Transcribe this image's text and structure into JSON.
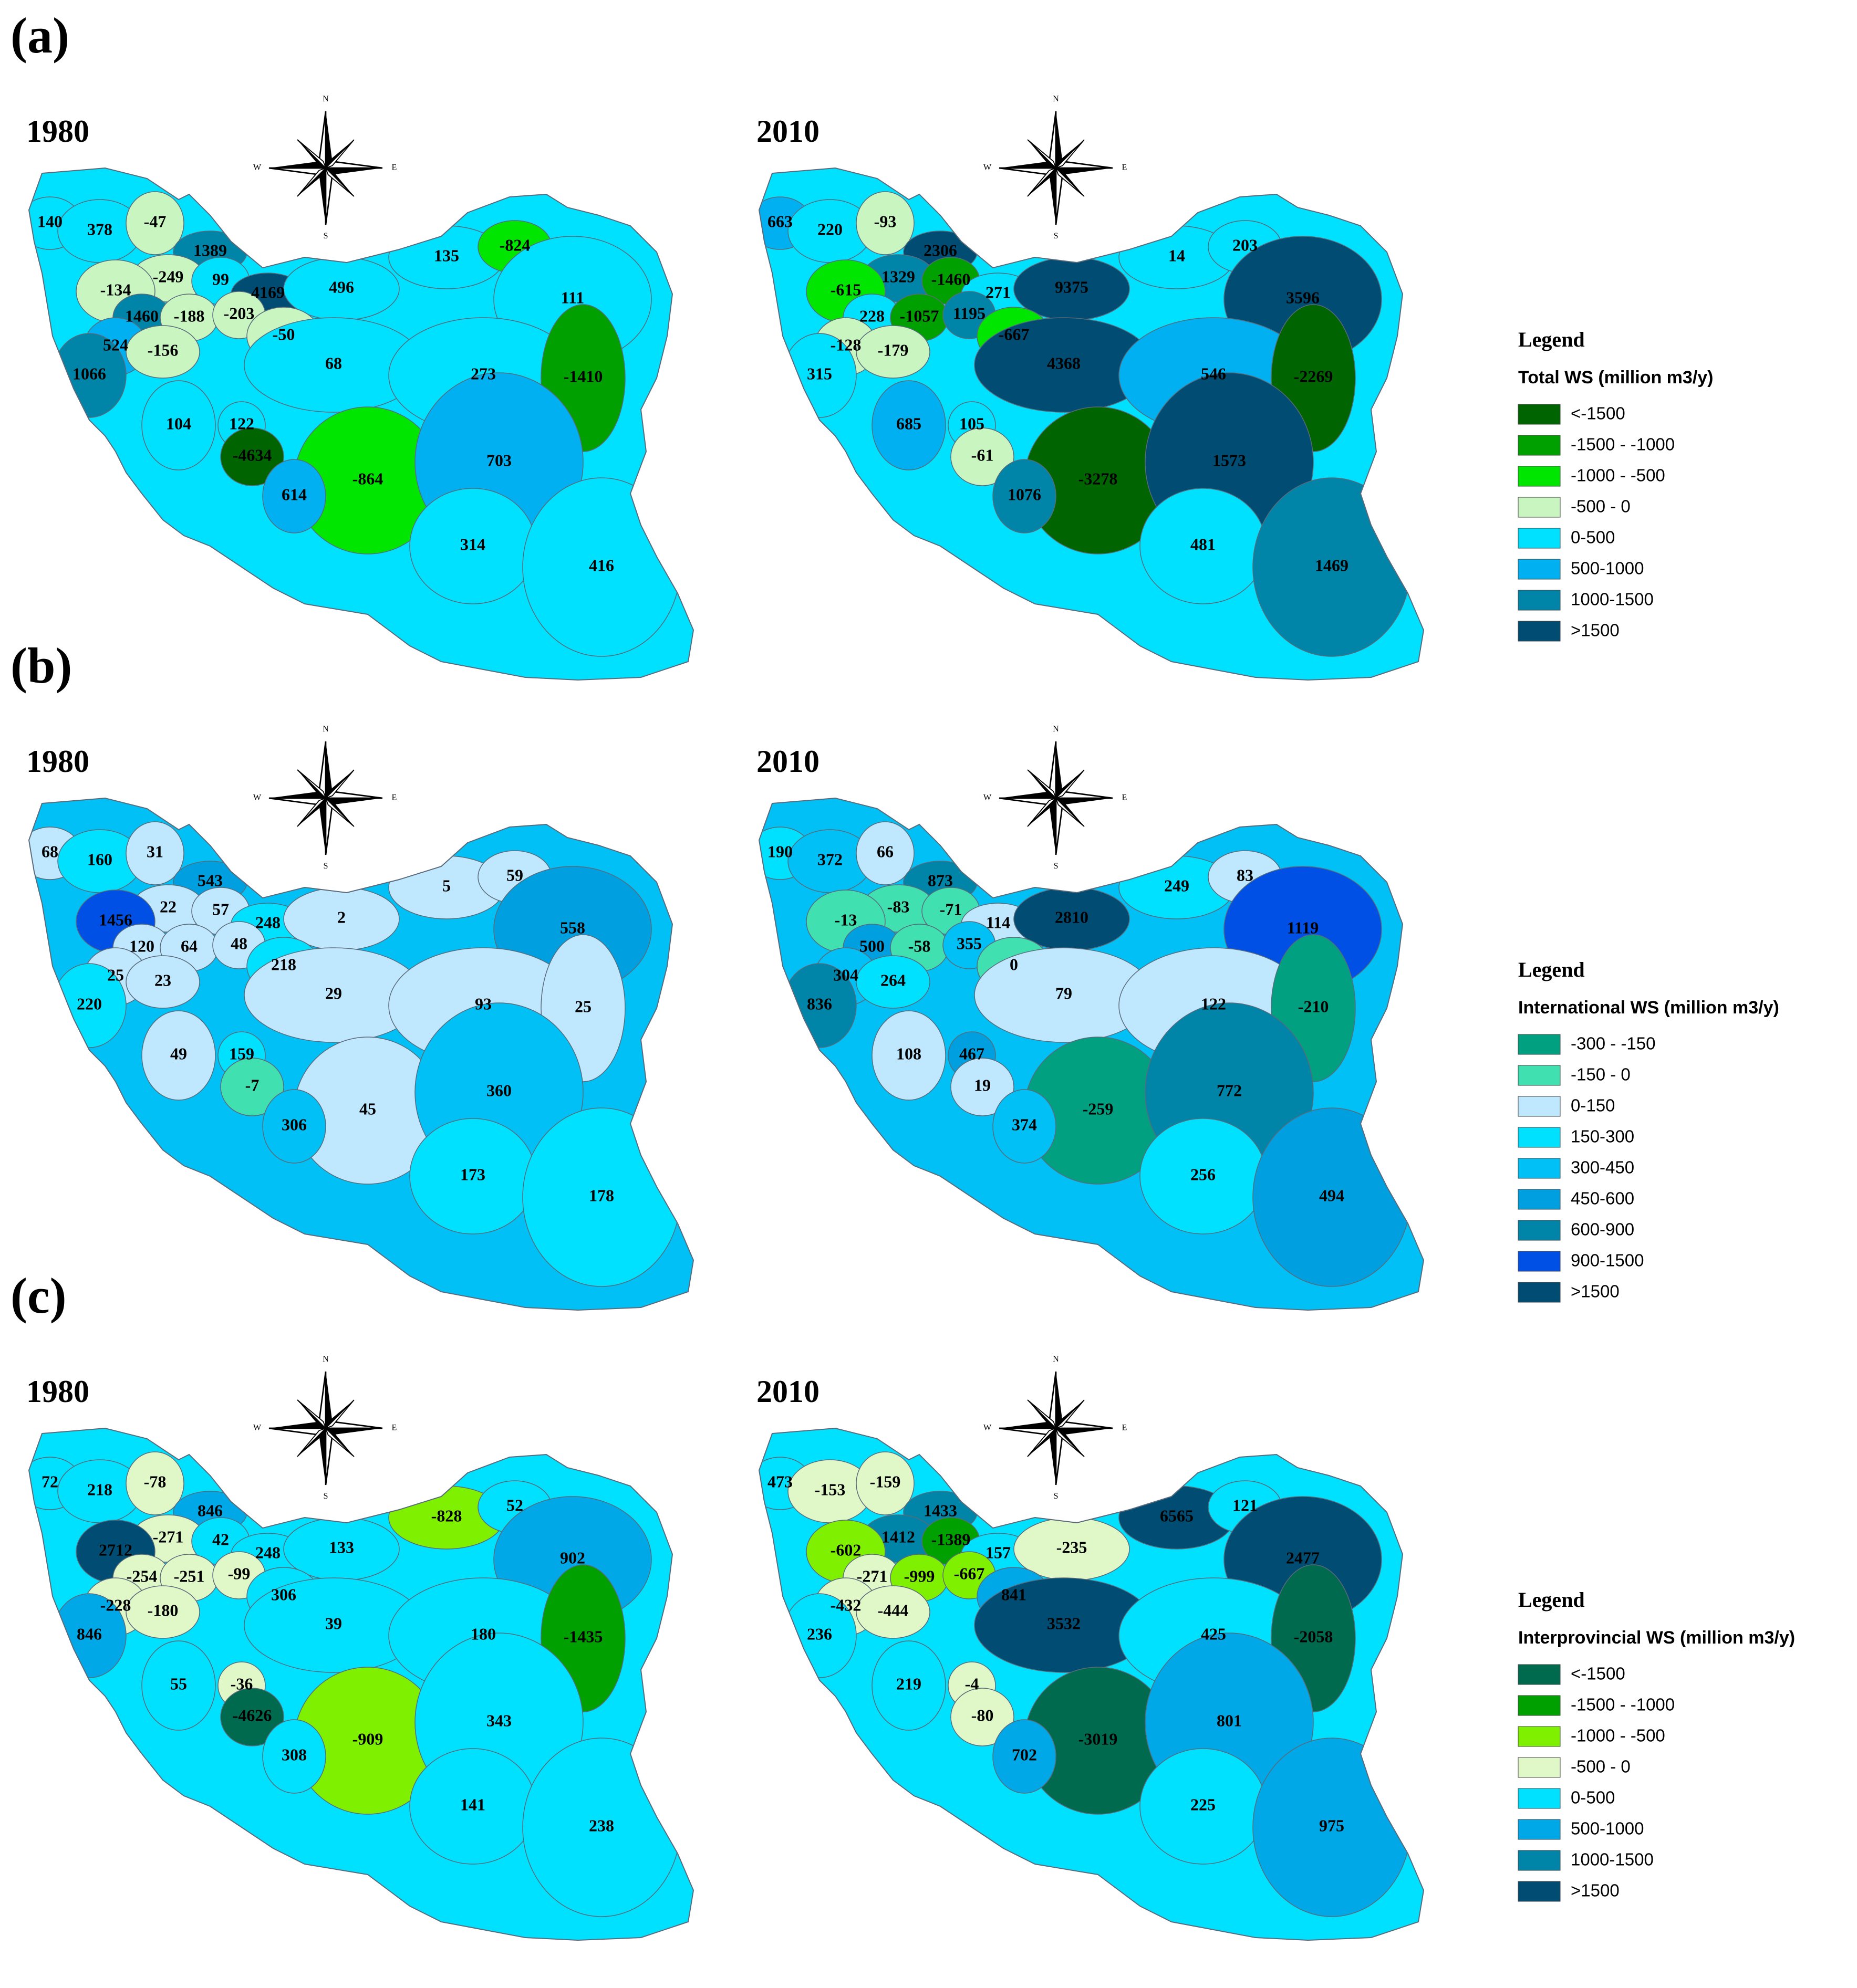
{
  "panels": [
    {
      "letter": "(a)",
      "legend": {
        "heading": "Legend",
        "title": "Total WS (million m3/y)",
        "classes": [
          {
            "label": "<-1500",
            "color": "#006400"
          },
          {
            "label": "-1500 - -1000",
            "color": "#00a000"
          },
          {
            "label": "-1000 - -500",
            "color": "#00e600"
          },
          {
            "label": "-500 - 0",
            "color": "#c8f5c0"
          },
          {
            "label": "0-500",
            "color": "#00e0ff"
          },
          {
            "label": "500-1000",
            "color": "#00b0f0"
          },
          {
            "label": "1000-1500",
            "color": "#0084a8"
          },
          {
            "label": ">1500",
            "color": "#004c73"
          }
        ]
      },
      "maps": [
        {
          "year": "1980",
          "regions": [
            {
              "label": "140",
              "cls": 4
            },
            {
              "label": "378",
              "cls": 4
            },
            {
              "label": "-47",
              "cls": 3
            },
            {
              "label": "1389",
              "cls": 6
            },
            {
              "label": "-249",
              "cls": 3
            },
            {
              "label": "99",
              "cls": 4
            },
            {
              "label": "-134",
              "cls": 3
            },
            {
              "label": "4169",
              "cls": 7
            },
            {
              "label": "496",
              "cls": 4
            },
            {
              "label": "135",
              "cls": 4
            },
            {
              "label": "-824",
              "cls": 2
            },
            {
              "label": "111",
              "cls": 4
            },
            {
              "label": "1460",
              "cls": 6
            },
            {
              "label": "-188",
              "cls": 3
            },
            {
              "label": "-203",
              "cls": 3
            },
            {
              "label": "-50",
              "cls": 3
            },
            {
              "label": "524",
              "cls": 5
            },
            {
              "label": "-156",
              "cls": 3
            },
            {
              "label": "68",
              "cls": 4
            },
            {
              "label": "1066",
              "cls": 6
            },
            {
              "label": "273",
              "cls": 4
            },
            {
              "label": "-1410",
              "cls": 1
            },
            {
              "label": "122",
              "cls": 4
            },
            {
              "label": "104",
              "cls": 4
            },
            {
              "label": "-4634",
              "cls": 0
            },
            {
              "label": "-864",
              "cls": 2
            },
            {
              "label": "703",
              "cls": 5
            },
            {
              "label": "614",
              "cls": 5
            },
            {
              "label": "314",
              "cls": 4
            },
            {
              "label": "416",
              "cls": 4
            }
          ]
        },
        {
          "year": "2010",
          "regions": [
            {
              "label": "663",
              "cls": 5
            },
            {
              "label": "220",
              "cls": 4
            },
            {
              "label": "-93",
              "cls": 3
            },
            {
              "label": "2306",
              "cls": 7
            },
            {
              "label": "1329",
              "cls": 6
            },
            {
              "label": "-1460",
              "cls": 1
            },
            {
              "label": "-615",
              "cls": 2
            },
            {
              "label": "271",
              "cls": 4
            },
            {
              "label": "9375",
              "cls": 7
            },
            {
              "label": "14",
              "cls": 4
            },
            {
              "label": "203",
              "cls": 4
            },
            {
              "label": "3596",
              "cls": 7
            },
            {
              "label": "228",
              "cls": 4
            },
            {
              "label": "-1057",
              "cls": 1
            },
            {
              "label": "1195",
              "cls": 6
            },
            {
              "label": "-667",
              "cls": 2
            },
            {
              "label": "-128",
              "cls": 3
            },
            {
              "label": "-179",
              "cls": 3
            },
            {
              "label": "4368",
              "cls": 7
            },
            {
              "label": "315",
              "cls": 4
            },
            {
              "label": "546",
              "cls": 5
            },
            {
              "label": "-2269",
              "cls": 0
            },
            {
              "label": "105",
              "cls": 4
            },
            {
              "label": "685",
              "cls": 5
            },
            {
              "label": "-61",
              "cls": 3
            },
            {
              "label": "-3278",
              "cls": 0
            },
            {
              "label": "1573",
              "cls": 7
            },
            {
              "label": "1076",
              "cls": 6
            },
            {
              "label": "481",
              "cls": 4
            },
            {
              "label": "1469",
              "cls": 6
            }
          ]
        }
      ]
    },
    {
      "letter": "(b)",
      "legend": {
        "heading": "Legend",
        "title": "International WS (million m3/y)",
        "classes": [
          {
            "label": "-300 - -150",
            "color": "#00a080"
          },
          {
            "label": "-150 - 0",
            "color": "#40e0b0"
          },
          {
            "label": "0-150",
            "color": "#bfe8ff"
          },
          {
            "label": "150-300",
            "color": "#00e0ff"
          },
          {
            "label": "300-450",
            "color": "#00c0f5"
          },
          {
            "label": "450-600",
            "color": "#00a0e0"
          },
          {
            "label": "600-900",
            "color": "#0084a8"
          },
          {
            "label": "900-1500",
            "color": "#0050e6"
          },
          {
            "label": ">1500",
            "color": "#004c73"
          }
        ]
      },
      "maps": [
        {
          "year": "1980",
          "regions": [
            {
              "label": "68",
              "cls": 2
            },
            {
              "label": "160",
              "cls": 3
            },
            {
              "label": "31",
              "cls": 2
            },
            {
              "label": "543",
              "cls": 5
            },
            {
              "label": "22",
              "cls": 2
            },
            {
              "label": "57",
              "cls": 2
            },
            {
              "label": "1456",
              "cls": 7
            },
            {
              "label": "248",
              "cls": 3
            },
            {
              "label": "2",
              "cls": 2
            },
            {
              "label": "5",
              "cls": 2
            },
            {
              "label": "59",
              "cls": 2
            },
            {
              "label": "558",
              "cls": 5
            },
            {
              "label": "120",
              "cls": 2
            },
            {
              "label": "64",
              "cls": 2
            },
            {
              "label": "48",
              "cls": 2
            },
            {
              "label": "218",
              "cls": 3
            },
            {
              "label": "25",
              "cls": 2
            },
            {
              "label": "23",
              "cls": 2
            },
            {
              "label": "29",
              "cls": 2
            },
            {
              "label": "220",
              "cls": 3
            },
            {
              "label": "93",
              "cls": 2
            },
            {
              "label": "25",
              "cls": 2
            },
            {
              "label": "159",
              "cls": 3
            },
            {
              "label": "49",
              "cls": 2
            },
            {
              "label": "-7",
              "cls": 1
            },
            {
              "label": "45",
              "cls": 2
            },
            {
              "label": "360",
              "cls": 4
            },
            {
              "label": "306",
              "cls": 4
            },
            {
              "label": "173",
              "cls": 3
            },
            {
              "label": "178",
              "cls": 3
            }
          ]
        },
        {
          "year": "2010",
          "regions": [
            {
              "label": "190",
              "cls": 3
            },
            {
              "label": "372",
              "cls": 4
            },
            {
              "label": "66",
              "cls": 2
            },
            {
              "label": "873",
              "cls": 6
            },
            {
              "label": "-83",
              "cls": 1
            },
            {
              "label": "-71",
              "cls": 1
            },
            {
              "label": "-13",
              "cls": 1
            },
            {
              "label": "114",
              "cls": 2
            },
            {
              "label": "2810",
              "cls": 8
            },
            {
              "label": "249",
              "cls": 3
            },
            {
              "label": "83",
              "cls": 2
            },
            {
              "label": "1119",
              "cls": 7
            },
            {
              "label": "500",
              "cls": 5
            },
            {
              "label": "-58",
              "cls": 1
            },
            {
              "label": "355",
              "cls": 4
            },
            {
              "label": "0",
              "cls": 1
            },
            {
              "label": "304",
              "cls": 4
            },
            {
              "label": "264",
              "cls": 3
            },
            {
              "label": "79",
              "cls": 2
            },
            {
              "label": "836",
              "cls": 6
            },
            {
              "label": "122",
              "cls": 2
            },
            {
              "label": "-210",
              "cls": 0
            },
            {
              "label": "467",
              "cls": 5
            },
            {
              "label": "108",
              "cls": 2
            },
            {
              "label": "19",
              "cls": 2
            },
            {
              "label": "-259",
              "cls": 0
            },
            {
              "label": "772",
              "cls": 6
            },
            {
              "label": "374",
              "cls": 4
            },
            {
              "label": "256",
              "cls": 3
            },
            {
              "label": "494",
              "cls": 5
            }
          ]
        }
      ]
    },
    {
      "letter": "(c)",
      "legend": {
        "heading": "Legend",
        "title": "Interprovincial WS (million m3/y)",
        "classes": [
          {
            "label": "<-1500",
            "color": "#006a4e"
          },
          {
            "label": "-1500 - -1000",
            "color": "#00a000"
          },
          {
            "label": "-1000 - -500",
            "color": "#7ff000"
          },
          {
            "label": "-500 - 0",
            "color": "#e0f8c8"
          },
          {
            "label": "0-500",
            "color": "#00e0ff"
          },
          {
            "label": "500-1000",
            "color": "#00a8e8"
          },
          {
            "label": "1000-1500",
            "color": "#0084a8"
          },
          {
            "label": ">1500",
            "color": "#004c73"
          }
        ]
      },
      "maps": [
        {
          "year": "1980",
          "regions": [
            {
              "label": "72",
              "cls": 4
            },
            {
              "label": "218",
              "cls": 4
            },
            {
              "label": "-78",
              "cls": 3
            },
            {
              "label": "846",
              "cls": 5
            },
            {
              "label": "-271",
              "cls": 3
            },
            {
              "label": "42",
              "cls": 4
            },
            {
              "label": "2712",
              "cls": 7
            },
            {
              "label": "248",
              "cls": 4
            },
            {
              "label": "133",
              "cls": 4
            },
            {
              "label": "-828",
              "cls": 2
            },
            {
              "label": "52",
              "cls": 4
            },
            {
              "label": "902",
              "cls": 5
            },
            {
              "label": "-254",
              "cls": 3
            },
            {
              "label": "-251",
              "cls": 3
            },
            {
              "label": "-99",
              "cls": 3
            },
            {
              "label": "306",
              "cls": 4
            },
            {
              "label": "-228",
              "cls": 3
            },
            {
              "label": "-180",
              "cls": 3
            },
            {
              "label": "39",
              "cls": 4
            },
            {
              "label": "846",
              "cls": 5
            },
            {
              "label": "180",
              "cls": 4
            },
            {
              "label": "-1435",
              "cls": 1
            },
            {
              "label": "-36",
              "cls": 3
            },
            {
              "label": "55",
              "cls": 4
            },
            {
              "label": "-4626",
              "cls": 0
            },
            {
              "label": "-909",
              "cls": 2
            },
            {
              "label": "343",
              "cls": 4
            },
            {
              "label": "308",
              "cls": 4
            },
            {
              "label": "141",
              "cls": 4
            },
            {
              "label": "238",
              "cls": 4
            }
          ]
        },
        {
          "year": "2010",
          "regions": [
            {
              "label": "473",
              "cls": 4
            },
            {
              "label": "-153",
              "cls": 3
            },
            {
              "label": "-159",
              "cls": 3
            },
            {
              "label": "1433",
              "cls": 6
            },
            {
              "label": "1412",
              "cls": 6
            },
            {
              "label": "-1389",
              "cls": 1
            },
            {
              "label": "-602",
              "cls": 2
            },
            {
              "label": "157",
              "cls": 4
            },
            {
              "label": "-235",
              "cls": 3
            },
            {
              "label": "6565",
              "cls": 7
            },
            {
              "label": "121",
              "cls": 4
            },
            {
              "label": "2477",
              "cls": 7
            },
            {
              "label": "-271",
              "cls": 3
            },
            {
              "label": "-999",
              "cls": 2
            },
            {
              "label": "-667",
              "cls": 2
            },
            {
              "label": "841",
              "cls": 5
            },
            {
              "label": "-432",
              "cls": 3
            },
            {
              "label": "-444",
              "cls": 3
            },
            {
              "label": "3532",
              "cls": 7
            },
            {
              "label": "236",
              "cls": 4
            },
            {
              "label": "425",
              "cls": 4
            },
            {
              "label": "-2058",
              "cls": 0
            },
            {
              "label": "-4",
              "cls": 3
            },
            {
              "label": "219",
              "cls": 4
            },
            {
              "label": "-80",
              "cls": 3
            },
            {
              "label": "-3019",
              "cls": 0
            },
            {
              "label": "801",
              "cls": 5
            },
            {
              "label": "702",
              "cls": 5
            },
            {
              "label": "225",
              "cls": 4
            },
            {
              "label": "975",
              "cls": 5
            }
          ]
        }
      ]
    }
  ],
  "compass": {
    "n": "N",
    "s": "S",
    "e": "E",
    "w": "W"
  }
}
